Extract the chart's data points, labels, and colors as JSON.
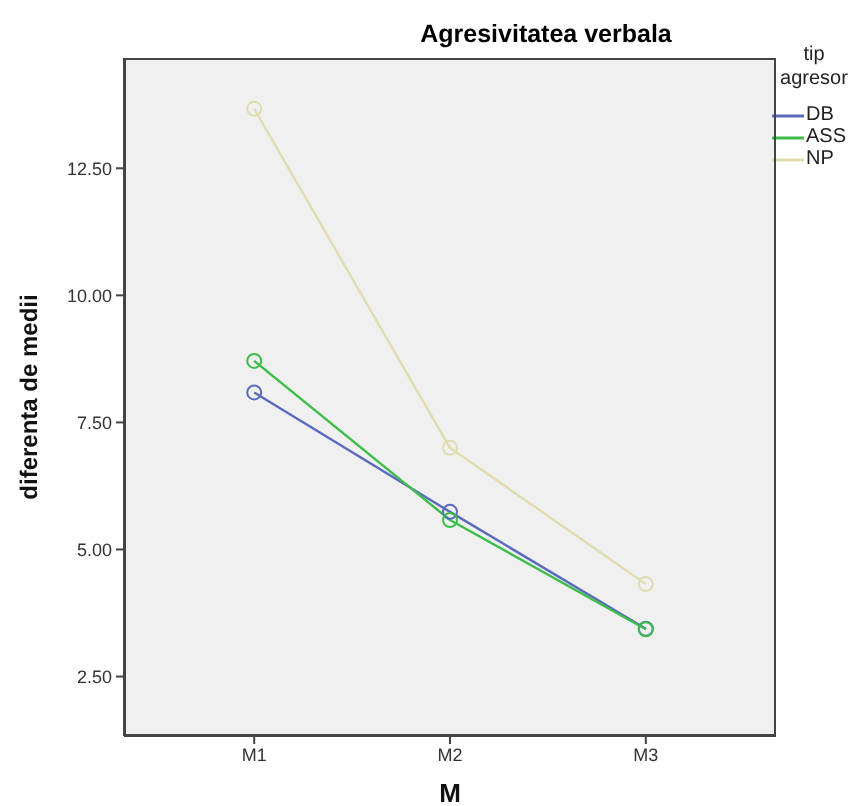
{
  "chart_data": {
    "type": "line",
    "title": "Agresivitatea verbala",
    "xlabel": "M",
    "ylabel": "diferenta de medii",
    "legend_title": "tip agresor",
    "categories": [
      "M1",
      "M2",
      "M3"
    ],
    "series": [
      {
        "name": "DB",
        "color": "#5a6bbf",
        "values": [
          8.09,
          5.74,
          3.44
        ]
      },
      {
        "name": "ASS",
        "color": "#3dbd4a",
        "values": [
          8.71,
          5.58,
          3.43
        ]
      },
      {
        "name": "NP",
        "color": "#e0dcb0",
        "values": [
          13.67,
          7.0,
          4.32
        ]
      }
    ],
    "ylim": [
      1.33,
      14.67
    ],
    "yticks": [
      {
        "value": 2.5,
        "label": "2.50"
      },
      {
        "value": 5,
        "label": "5.00"
      },
      {
        "value": 7.5,
        "label": "7.50"
      },
      {
        "value": 10,
        "label": "10.00"
      },
      {
        "value": 12.5,
        "label": "12.50"
      }
    ],
    "grid": false,
    "legend": "right",
    "marker": "circle",
    "line_style": "solid"
  }
}
